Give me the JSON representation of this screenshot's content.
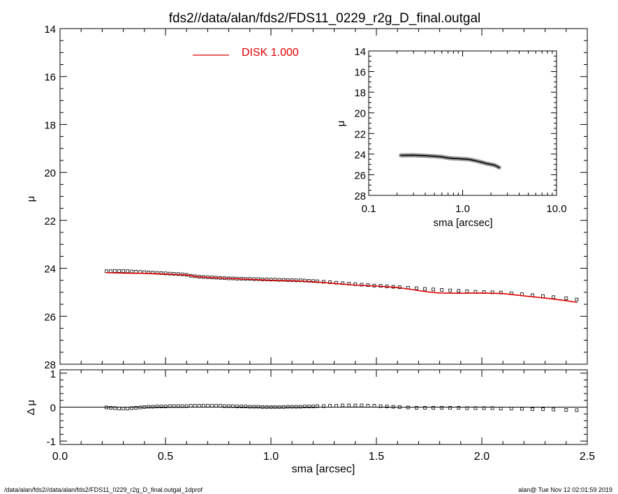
{
  "chart_data": [
    {
      "type": "scatter",
      "title": "fds2//data/alan/fds2/FDS11_0229_r2g_D_final.outgal",
      "xlabel": "",
      "ylabel": "μ",
      "xlim": [
        0.0,
        2.5
      ],
      "ylim": [
        28,
        14
      ],
      "y_inverted": true,
      "x_ticks": [
        "0.0",
        "0.5",
        "1.0",
        "1.5",
        "2.0",
        "2.5"
      ],
      "y_ticks": [
        "14",
        "16",
        "18",
        "20",
        "22",
        "24",
        "26",
        "28"
      ],
      "legend": {
        "label": "DISK  1.000",
        "color": "#e00000",
        "placement": "top-center"
      },
      "series": [
        {
          "marker": "open-square",
          "color": "#000000",
          "x": [
            0.22,
            0.24,
            0.26,
            0.28,
            0.3,
            0.32,
            0.34,
            0.36,
            0.38,
            0.4,
            0.42,
            0.44,
            0.46,
            0.48,
            0.5,
            0.52,
            0.54,
            0.56,
            0.58,
            0.6,
            0.62,
            0.64,
            0.66,
            0.68,
            0.7,
            0.72,
            0.74,
            0.76,
            0.78,
            0.8,
            0.82,
            0.84,
            0.86,
            0.88,
            0.9,
            0.92,
            0.94,
            0.96,
            0.98,
            1.0,
            1.02,
            1.04,
            1.06,
            1.08,
            1.1,
            1.12,
            1.14,
            1.16,
            1.18,
            1.2,
            1.22,
            1.25,
            1.28,
            1.31,
            1.34,
            1.37,
            1.4,
            1.43,
            1.46,
            1.49,
            1.52,
            1.55,
            1.58,
            1.61,
            1.65,
            1.69,
            1.73,
            1.77,
            1.81,
            1.85,
            1.89,
            1.93,
            1.97,
            2.01,
            2.05,
            2.09,
            2.14,
            2.19,
            2.24,
            2.29,
            2.34,
            2.4,
            2.45
          ],
          "y": [
            24.12,
            24.12,
            24.11,
            24.11,
            24.11,
            24.12,
            24.13,
            24.14,
            24.15,
            24.16,
            24.17,
            24.18,
            24.19,
            24.2,
            24.21,
            24.22,
            24.23,
            24.24,
            24.25,
            24.27,
            24.31,
            24.33,
            24.35,
            24.36,
            24.37,
            24.38,
            24.39,
            24.4,
            24.41,
            24.42,
            24.42,
            24.43,
            24.43,
            24.44,
            24.44,
            24.45,
            24.45,
            24.46,
            24.46,
            24.47,
            24.47,
            24.48,
            24.48,
            24.49,
            24.49,
            24.5,
            24.5,
            24.51,
            24.52,
            24.53,
            24.54,
            24.56,
            24.58,
            24.6,
            24.62,
            24.64,
            24.66,
            24.68,
            24.7,
            24.72,
            24.73,
            24.75,
            24.77,
            24.79,
            24.81,
            24.83,
            24.86,
            24.88,
            24.9,
            24.92,
            24.94,
            24.96,
            24.98,
            24.99,
            25.0,
            25.01,
            25.04,
            25.08,
            25.12,
            25.16,
            25.2,
            25.25,
            25.3
          ]
        },
        {
          "name": "DISK  1.000",
          "style": "line",
          "color": "#e00000",
          "x": [
            0.22,
            0.3,
            0.4,
            0.5,
            0.6,
            0.65,
            0.7,
            0.8,
            0.9,
            1.0,
            1.1,
            1.2,
            1.3,
            1.4,
            1.5,
            1.6,
            1.65,
            1.7,
            1.75,
            1.8,
            1.9,
            2.0,
            2.1,
            2.2,
            2.3,
            2.4,
            2.45
          ],
          "y": [
            24.18,
            24.2,
            24.21,
            24.24,
            24.28,
            24.35,
            24.38,
            24.42,
            24.46,
            24.5,
            24.52,
            24.56,
            24.63,
            24.7,
            24.74,
            24.8,
            24.86,
            24.93,
            24.99,
            25.03,
            25.04,
            25.03,
            25.05,
            25.15,
            25.24,
            25.35,
            25.42
          ]
        }
      ]
    },
    {
      "type": "scatter",
      "title": "",
      "xlabel": "sma [arcsec]",
      "ylabel": "Δ μ",
      "xlim": [
        0.0,
        2.5
      ],
      "ylim": [
        -1.1,
        1.1
      ],
      "x_ticks": [
        "0.0",
        "0.5",
        "1.0",
        "1.5",
        "2.0",
        "2.5"
      ],
      "y_ticks": [
        "1",
        "0",
        "-1"
      ],
      "zero_line": true,
      "series": [
        {
          "marker": "open-square",
          "color": "#000000",
          "x": [
            0.22,
            0.24,
            0.26,
            0.28,
            0.3,
            0.32,
            0.34,
            0.36,
            0.38,
            0.4,
            0.42,
            0.44,
            0.46,
            0.48,
            0.5,
            0.52,
            0.54,
            0.56,
            0.58,
            0.6,
            0.62,
            0.64,
            0.66,
            0.68,
            0.7,
            0.72,
            0.74,
            0.76,
            0.78,
            0.8,
            0.82,
            0.84,
            0.86,
            0.88,
            0.9,
            0.92,
            0.94,
            0.96,
            0.98,
            1.0,
            1.02,
            1.04,
            1.06,
            1.08,
            1.1,
            1.12,
            1.14,
            1.16,
            1.18,
            1.2,
            1.22,
            1.25,
            1.28,
            1.31,
            1.34,
            1.37,
            1.4,
            1.43,
            1.46,
            1.49,
            1.52,
            1.55,
            1.58,
            1.61,
            1.65,
            1.69,
            1.73,
            1.77,
            1.81,
            1.85,
            1.89,
            1.93,
            1.97,
            2.01,
            2.05,
            2.09,
            2.14,
            2.19,
            2.24,
            2.29,
            2.34,
            2.4,
            2.45
          ],
          "y": [
            -0.01,
            -0.02,
            -0.03,
            -0.04,
            -0.04,
            -0.04,
            -0.03,
            -0.02,
            -0.01,
            0.0,
            0.01,
            0.01,
            0.02,
            0.02,
            0.02,
            0.03,
            0.03,
            0.03,
            0.03,
            0.03,
            0.04,
            0.04,
            0.04,
            0.04,
            0.04,
            0.04,
            0.04,
            0.04,
            0.03,
            0.03,
            0.03,
            0.02,
            0.02,
            0.02,
            0.01,
            0.01,
            0.01,
            0.0,
            0.0,
            0.0,
            0.0,
            0.0,
            0.0,
            0.01,
            0.01,
            0.01,
            0.01,
            0.02,
            0.02,
            0.02,
            0.03,
            0.03,
            0.04,
            0.04,
            0.05,
            0.05,
            0.05,
            0.05,
            0.04,
            0.04,
            0.03,
            0.02,
            0.01,
            0.0,
            -0.01,
            -0.02,
            -0.02,
            -0.02,
            -0.02,
            -0.02,
            -0.02,
            -0.03,
            -0.03,
            -0.03,
            -0.03,
            -0.04,
            -0.04,
            -0.05,
            -0.06,
            -0.06,
            -0.07,
            -0.08,
            -0.09
          ]
        }
      ]
    },
    {
      "type": "line",
      "title": "",
      "xlabel": "sma [arcsec]",
      "ylabel": "μ",
      "x_scale": "log",
      "xlim": [
        0.1,
        10.0
      ],
      "ylim": [
        28,
        14
      ],
      "y_inverted": true,
      "x_ticks": [
        "0.1",
        "1.0",
        "10.0"
      ],
      "y_ticks": [
        "14",
        "16",
        "18",
        "20",
        "22",
        "24",
        "26",
        "28"
      ],
      "series": [
        {
          "color": "#555555",
          "x": [
            0.22,
            0.3,
            0.4,
            0.5,
            0.6,
            0.7,
            0.8,
            0.9,
            1.0,
            1.1,
            1.2,
            1.4,
            1.6,
            1.8,
            2.0,
            2.2,
            2.45
          ],
          "y": [
            24.12,
            24.11,
            24.16,
            24.21,
            24.27,
            24.37,
            24.42,
            24.44,
            24.47,
            24.49,
            24.53,
            24.66,
            24.79,
            24.92,
            25.0,
            25.08,
            25.3
          ]
        }
      ]
    }
  ],
  "footer": {
    "left": "/data/alan/fds2//data/alan/fds2/FDS11_0229_r2g_D_final.outgal_1dprof",
    "right": "alan@  Tue Nov 12 02:01:59 2019"
  }
}
